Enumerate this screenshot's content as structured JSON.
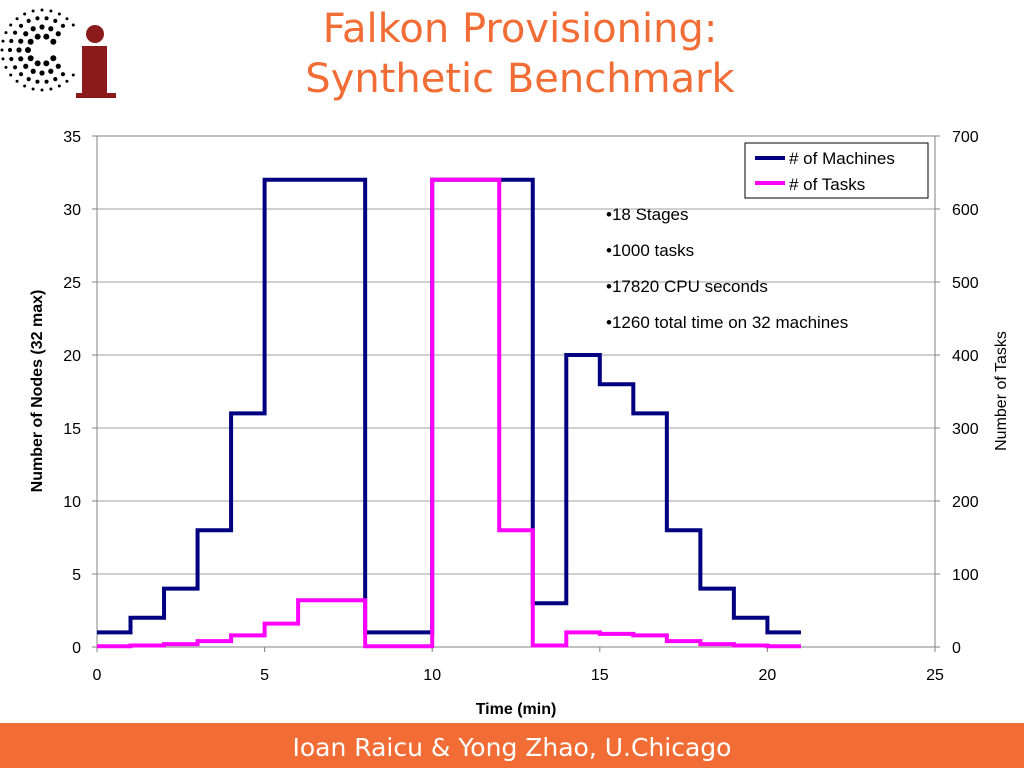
{
  "slide": {
    "title_line1": "Falkon Provisioning:",
    "title_line2": "Synthetic Benchmark",
    "footer": "Ioan Raicu & Yong Zhao, U.Chicago"
  },
  "logo": {
    "letters": "Ci",
    "colors": {
      "dots": "#000000",
      "letter": "#8b1a1a"
    }
  },
  "colors": {
    "accent": "#f26d35",
    "machines": "#000080",
    "tasks": "#ff00ff"
  },
  "chart_data": {
    "type": "line",
    "step": true,
    "xlabel": "Time (min)",
    "ylabel": "Number of Nodes (32 max)",
    "y2label": "Number of Tasks",
    "xlim": [
      0,
      25
    ],
    "ylim": [
      0,
      35
    ],
    "y2lim": [
      0,
      700
    ],
    "xticks": [
      "0",
      "5",
      "10",
      "15",
      "20",
      "25"
    ],
    "yticks": [
      "0",
      "5",
      "10",
      "15",
      "20",
      "25",
      "30",
      "35"
    ],
    "y2ticks": [
      "0",
      "100",
      "200",
      "300",
      "400",
      "500",
      "600",
      "700"
    ],
    "grid": "horizontal",
    "legend_position": "top-right",
    "series": [
      {
        "name": "# of Machines",
        "axis": "left",
        "color": "#000080",
        "x": [
          0,
          1,
          2,
          3,
          4,
          5,
          8,
          10,
          13,
          14,
          15,
          16,
          17,
          18,
          19,
          20,
          21
        ],
        "y": [
          1,
          2,
          4,
          8,
          16,
          32,
          1,
          32,
          3,
          20,
          18,
          16,
          8,
          4,
          2,
          1,
          1
        ]
      },
      {
        "name": "# of Tasks",
        "axis": "right",
        "color": "#ff00ff",
        "x": [
          0,
          1,
          2,
          3,
          4,
          5,
          6,
          8,
          10,
          12,
          13,
          14,
          15,
          16,
          17,
          18,
          19,
          20,
          21
        ],
        "y": [
          1,
          2,
          4,
          8,
          16,
          32,
          64,
          1,
          640,
          160,
          2,
          20,
          18,
          16,
          8,
          4,
          2,
          1,
          1
        ]
      }
    ],
    "annotations": [
      "•18 Stages",
      "•1000 tasks",
      "•17820 CPU seconds",
      "•1260 total time on 32 machines"
    ]
  }
}
